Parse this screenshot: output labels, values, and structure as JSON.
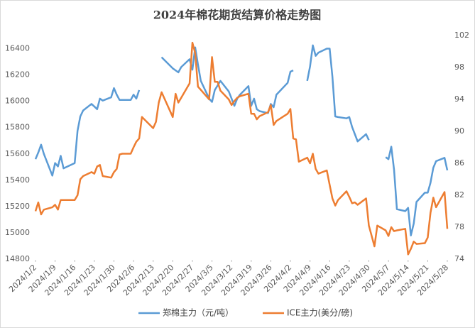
{
  "chart_data": {
    "type": "line",
    "title": "2024年棉花期货结算价格走势图",
    "x": [
      "2024/1/2",
      "2024/1/3",
      "2024/1/4",
      "2024/1/5",
      "2024/1/8",
      "2024/1/9",
      "2024/1/10",
      "2024/1/11",
      "2024/1/12",
      "2024/1/16",
      "2024/1/17",
      "2024/1/18",
      "2024/1/19",
      "2024/1/22",
      "2024/1/23",
      "2024/1/24",
      "2024/1/25",
      "2024/1/26",
      "2024/1/29",
      "2024/1/30",
      "2024/1/31",
      "2024/2/1",
      "2024/2/2",
      "2024/2/5",
      "2024/2/6",
      "2024/2/7",
      "2024/2/8",
      "2024/2/9",
      "2024/2/13",
      "2024/2/14",
      "2024/2/15",
      "2024/2/16",
      "2024/2/20",
      "2024/2/21",
      "2024/2/22",
      "2024/2/23",
      "2024/2/26",
      "2024/2/27",
      "2024/2/28",
      "2024/2/29",
      "2024/3/1",
      "2024/3/4",
      "2024/3/5",
      "2024/3/6",
      "2024/3/7",
      "2024/3/8",
      "2024/3/11",
      "2024/3/12",
      "2024/3/13",
      "2024/3/14",
      "2024/3/15",
      "2024/3/18",
      "2024/3/19",
      "2024/3/20",
      "2024/3/21",
      "2024/3/22",
      "2024/3/25",
      "2024/3/26",
      "2024/3/27",
      "2024/3/28",
      "2024/4/1",
      "2024/4/2",
      "2024/4/3",
      "2024/4/4",
      "2024/4/5",
      "2024/4/8",
      "2024/4/9",
      "2024/4/10",
      "2024/4/11",
      "2024/4/12",
      "2024/4/15",
      "2024/4/16",
      "2024/4/17",
      "2024/4/18",
      "2024/4/19",
      "2024/4/22",
      "2024/4/23",
      "2024/4/24",
      "2024/4/25",
      "2024/4/26",
      "2024/4/29",
      "2024/4/30",
      "2024/5/1",
      "2024/5/2",
      "2024/5/3",
      "2024/5/6",
      "2024/5/7",
      "2024/5/8",
      "2024/5/9",
      "2024/5/10",
      "2024/5/13",
      "2024/5/14",
      "2024/5/15",
      "2024/5/16",
      "2024/5/17",
      "2024/5/20",
      "2024/5/21",
      "2024/5/22",
      "2024/5/23",
      "2024/5/24",
      "2024/5/27",
      "2024/5/28"
    ],
    "series": [
      {
        "name": "郑棉主力（元/吨）",
        "color": "#5b9bd5",
        "values": [
          15560,
          15610,
          15670,
          15600,
          15435,
          15530,
          15505,
          15585,
          15490,
          15530,
          15775,
          15885,
          15930,
          15980,
          15960,
          15940,
          16020,
          16005,
          16030,
          16100,
          16050,
          16010,
          16010,
          16010,
          16050,
          16020,
          16085,
          null,
          null,
          null,
          null,
          16335,
          16250,
          16235,
          16220,
          16260,
          16320,
          16240,
          16410,
          16280,
          16155,
          16020,
          15995,
          16085,
          16120,
          16155,
          16075,
          16020,
          15965,
          16020,
          16050,
          16115,
          15965,
          16020,
          15940,
          15925,
          15910,
          15980,
          15955,
          16050,
          16140,
          16225,
          16235,
          null,
          null,
          16155,
          16265,
          16425,
          16345,
          16370,
          16400,
          16400,
          16185,
          15885,
          15880,
          15870,
          15880,
          15805,
          15750,
          15695,
          15750,
          15705,
          null,
          null,
          null,
          15575,
          15560,
          15655,
          15480,
          15180,
          15165,
          15190,
          14980,
          15070,
          15235,
          15305,
          15305,
          15380,
          15495,
          15545,
          15570,
          15475
        ]
      },
      {
        "name": "ICE主力(美分/磅)",
        "color": "#ed7d31",
        "axis": "y2",
        "values": [
          80.0,
          81.1,
          79.6,
          80.2,
          80.5,
          80.8,
          80.2,
          81.4,
          81.4,
          81.4,
          82.0,
          84.0,
          84.4,
          84.9,
          84.7,
          85.6,
          85.8,
          84.4,
          84.2,
          84.9,
          85.3,
          87.1,
          87.2,
          87.2,
          88.0,
          88.7,
          89.1,
          91.8,
          90.4,
          91.2,
          93.6,
          94.9,
          91.8,
          94.7,
          93.6,
          94.2,
          96.0,
          101.1,
          99.8,
          95.6,
          95.2,
          94.0,
          99.3,
          96.2,
          96.2,
          95.1,
          94.0,
          93.3,
          93.8,
          94.2,
          94.4,
          94.7,
          92.2,
          92.2,
          91.5,
          91.9,
          92.4,
          93.3,
          90.8,
          91.3,
          92.2,
          92.8,
          89.1,
          89.0,
          86.2,
          86.7,
          86.0,
          87.2,
          85.3,
          84.7,
          85.1,
          83.3,
          81.6,
          80.7,
          81.4,
          82.5,
          81.8,
          81.0,
          81.1,
          80.8,
          81.6,
          78.2,
          76.9,
          75.6,
          78.2,
          77.6,
          76.9,
          78.0,
          77.5,
          77.6,
          77.8,
          74.6,
          75.3,
          76.2,
          75.9,
          76.0,
          76.7,
          79.8,
          81.7,
          80.5,
          82.4,
          77.8
        ]
      }
    ],
    "xlim": [
      "2024/1/2",
      "2024/5/28"
    ],
    "xticks": [
      "2024/1/2",
      "2024/1/9",
      "2024/1/16",
      "2024/1/23",
      "2024/1/30",
      "2024/2/6",
      "2024/2/13",
      "2024/2/20",
      "2024/2/27",
      "2024/3/5",
      "2024/3/12",
      "2024/3/19",
      "2024/3/26",
      "2024/4/2",
      "2024/4/9",
      "2024/4/16",
      "2024/4/23",
      "2024/4/30",
      "2024/5/7",
      "2024/5/14",
      "2024/5/21",
      "2024/5/28"
    ],
    "ylim": [
      14800,
      16500
    ],
    "yticks": [
      14800,
      15000,
      15200,
      15400,
      15600,
      15800,
      16000,
      16200,
      16400
    ],
    "y2lim": [
      74,
      102
    ],
    "y2ticks": [
      74,
      78,
      82,
      86,
      90,
      94,
      98,
      102
    ],
    "grid": false,
    "legend": "bottom"
  }
}
